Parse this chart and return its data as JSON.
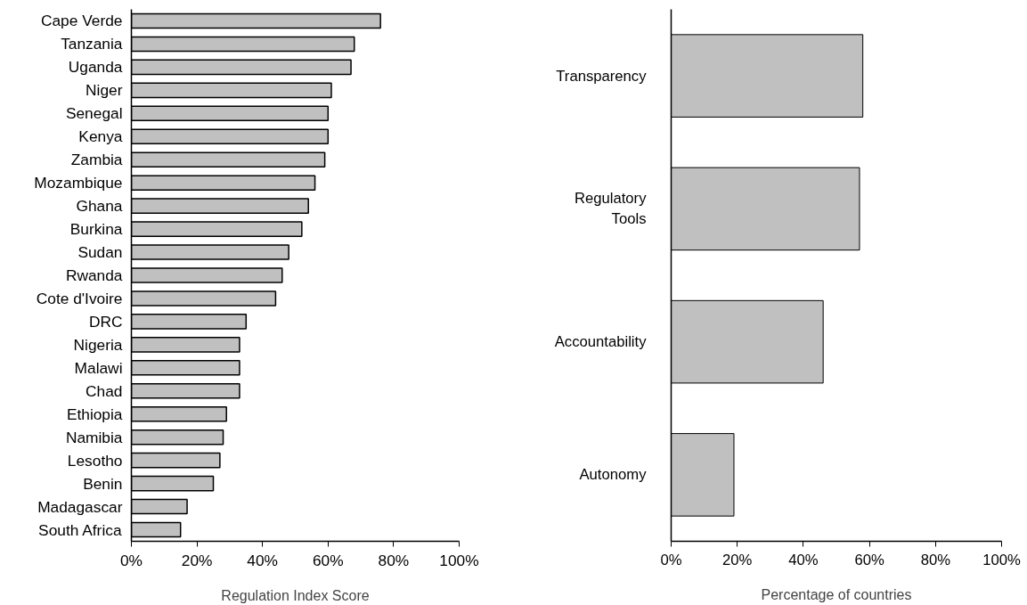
{
  "chart_data": [
    {
      "type": "bar",
      "orientation": "horizontal",
      "xlabel": "Regulation Index Score",
      "color": "#c0c0c0",
      "grid": false,
      "categories": [
        "Cape Verde",
        "Tanzania",
        "Uganda",
        "Niger",
        "Senegal",
        "Kenya",
        "Zambia",
        "Mozambique",
        "Ghana",
        "Burkina",
        "Sudan",
        "Rwanda",
        "Cote d'Ivoire",
        "DRC",
        "Nigeria",
        "Malawi",
        "Chad",
        "Ethiopia",
        "Namibia",
        "Lesotho",
        "Benin",
        "Madagascar",
        "South Africa"
      ],
      "values": [
        76,
        68,
        67,
        61,
        60,
        60,
        59,
        56,
        54,
        52,
        48,
        46,
        44,
        35,
        33,
        33,
        33,
        29,
        28,
        27,
        25,
        17,
        15
      ],
      "xlim": [
        0,
        100
      ],
      "xticks": [
        {
          "value": 0,
          "label": "0%"
        },
        {
          "value": 20,
          "label": "20%"
        },
        {
          "value": 40,
          "label": "40%"
        },
        {
          "value": 60,
          "label": "60%"
        },
        {
          "value": 80,
          "label": "80%"
        },
        {
          "value": 100,
          "label": "100%"
        }
      ]
    },
    {
      "type": "bar",
      "orientation": "horizontal",
      "xlabel": "Percentage of countries",
      "color": "#c0c0c0",
      "grid": false,
      "categories": [
        "Transparency",
        "Regulatory Tools",
        "Accountability",
        "Autonomy"
      ],
      "values": [
        58,
        57,
        46,
        19
      ],
      "xlim": [
        0,
        100
      ],
      "xticks": [
        {
          "value": 0,
          "label": "0%"
        },
        {
          "value": 20,
          "label": "20%"
        },
        {
          "value": 40,
          "label": "40%"
        },
        {
          "value": 60,
          "label": "60%"
        },
        {
          "value": 80,
          "label": "80%"
        },
        {
          "value": 100,
          "label": "100%"
        }
      ]
    }
  ]
}
